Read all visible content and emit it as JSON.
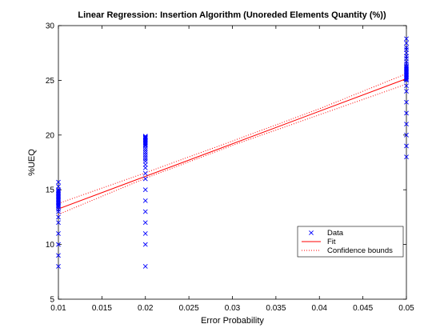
{
  "chart_data": {
    "type": "scatter",
    "title": "Linear Regression: Insertion Algorithm (Unoreded Elements Quantity (%))",
    "xlabel": "Error Probability",
    "ylabel": "%UEQ",
    "xlim": [
      0.01,
      0.05
    ],
    "ylim": [
      5,
      30
    ],
    "xticks": [
      "0.01",
      "0.015",
      "0.02",
      "0.025",
      "0.03",
      "0.035",
      "0.04",
      "0.045",
      "0.05"
    ],
    "yticks": [
      "5",
      "10",
      "15",
      "20",
      "25",
      "30"
    ],
    "grid": false,
    "legend_position": "bottom-right",
    "series": [
      {
        "name": "Data",
        "kind": "scatter",
        "color": "#0000ff",
        "x": [
          0.01,
          0.01,
          0.01,
          0.01,
          0.01,
          0.01,
          0.01,
          0.01,
          0.01,
          0.01,
          0.01,
          0.01,
          0.01,
          0.01,
          0.01,
          0.01,
          0.01,
          0.01,
          0.01,
          0.01,
          0.01,
          0.01,
          0.01,
          0.01,
          0.01,
          0.01,
          0.01,
          0.02,
          0.02,
          0.02,
          0.02,
          0.02,
          0.02,
          0.02,
          0.02,
          0.02,
          0.02,
          0.02,
          0.02,
          0.02,
          0.02,
          0.02,
          0.02,
          0.02,
          0.02,
          0.02,
          0.02,
          0.02,
          0.02,
          0.02,
          0.02,
          0.02,
          0.02,
          0.02,
          0.02,
          0.02,
          0.02,
          0.05,
          0.05,
          0.05,
          0.05,
          0.05,
          0.05,
          0.05,
          0.05,
          0.05,
          0.05,
          0.05,
          0.05,
          0.05,
          0.05,
          0.05,
          0.05,
          0.05,
          0.05,
          0.05,
          0.05,
          0.05,
          0.05,
          0.05,
          0.05,
          0.05,
          0.05,
          0.05,
          0.05,
          0.05,
          0.05,
          0.05
        ],
        "y": [
          8,
          9,
          10,
          11,
          12,
          12.5,
          13,
          13.2,
          13.4,
          13.5,
          13.6,
          13.7,
          13.8,
          13.9,
          14,
          14.1,
          14.2,
          14.3,
          14.4,
          14.5,
          14.6,
          14.7,
          14.8,
          14.9,
          15,
          15.3,
          15.7,
          8,
          10,
          11,
          12,
          13,
          14,
          15,
          16,
          16.5,
          17,
          17.3,
          17.6,
          17.8,
          18,
          18.2,
          18.4,
          18.6,
          18.8,
          19,
          19.1,
          19.2,
          19.3,
          19.4,
          19.5,
          19.6,
          19.7,
          19.75,
          19.8,
          19.85,
          19.9,
          18,
          19,
          20,
          21,
          22,
          23,
          24,
          24.5,
          25,
          25.2,
          25.4,
          25.5,
          25.6,
          25.7,
          25.8,
          25.9,
          26,
          26.1,
          26.2,
          26.3,
          26.5,
          26.7,
          27,
          27.2,
          27.5,
          27.8,
          28,
          28.4,
          28.8,
          25.3,
          25.1
        ]
      },
      {
        "name": "Fit",
        "kind": "line",
        "color": "#ff0000",
        "x": [
          0.01,
          0.05
        ],
        "y": [
          13.25,
          25.15
        ]
      },
      {
        "name": "Confidence bounds",
        "kind": "band",
        "color": "#ff0000",
        "x": [
          0.01,
          0.02,
          0.03,
          0.04,
          0.05
        ],
        "upper": [
          13.75,
          16.55,
          19.45,
          22.4,
          25.6
        ],
        "lower": [
          12.75,
          16.05,
          19.05,
          21.85,
          24.65
        ]
      }
    ]
  }
}
